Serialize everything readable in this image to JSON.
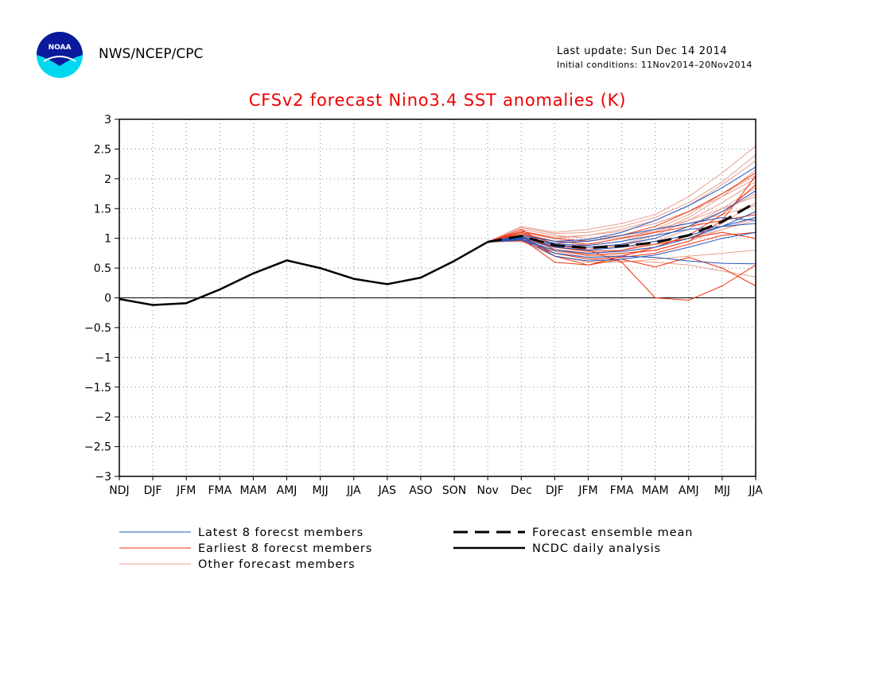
{
  "header": {
    "org": "NWS/NCEP/CPC",
    "last_update": "Last update: Sun Dec 14 2014",
    "initial_conditions": "Initial conditions: 11Nov2014–20Nov2014",
    "logo_text": "NOAA"
  },
  "colors": {
    "title": "#ee0000",
    "latest": "#2255bb",
    "earliest": "#ee3311",
    "other": "#e8a090",
    "analysis": "#000000"
  },
  "chart_data": {
    "type": "line",
    "title": "CFSv2 forecast Nino3.4 SST anomalies (K)",
    "xlabel": "",
    "ylabel": "",
    "categories": [
      "NDJ",
      "DJF",
      "JFM",
      "FMA",
      "MAM",
      "AMJ",
      "MJJ",
      "JJA",
      "JAS",
      "ASO",
      "SON",
      "Nov",
      "Dec",
      "DJF",
      "JFM",
      "FMA",
      "MAM",
      "AMJ",
      "MJJ",
      "JJA"
    ],
    "ylim": [
      -3,
      3
    ],
    "yticks": [
      "3",
      "2.5",
      "2",
      "1.5",
      "1",
      "0.5",
      "0",
      "−0.5",
      "−1",
      "−1.5",
      "−2",
      "−2.5",
      "−3"
    ],
    "grid": true,
    "analysis": {
      "name": "NCDC daily analysis",
      "values": [
        -0.02,
        -0.12,
        -0.09,
        0.14,
        0.41,
        0.63,
        0.5,
        0.32,
        0.23,
        0.34,
        0.62,
        0.94
      ]
    },
    "ensemble_mean": {
      "name": "Forecast ensemble mean",
      "start_index": 11,
      "values": [
        0.94,
        1.04,
        0.88,
        0.84,
        0.87,
        0.93,
        1.05,
        1.28,
        1.6
      ]
    },
    "members": {
      "start_index": 11,
      "latest": [
        [
          0.94,
          1.0,
          0.92,
          0.95,
          1.05,
          1.15,
          1.25,
          1.35,
          1.3
        ],
        [
          0.94,
          0.98,
          0.85,
          0.8,
          0.85,
          0.95,
          1.05,
          1.2,
          1.35
        ],
        [
          0.94,
          1.02,
          0.75,
          0.68,
          0.7,
          0.68,
          0.62,
          0.58,
          0.57
        ],
        [
          0.94,
          1.05,
          0.95,
          0.98,
          1.1,
          1.3,
          1.55,
          1.85,
          2.2
        ],
        [
          0.94,
          0.97,
          0.8,
          0.75,
          0.78,
          0.85,
          1.0,
          1.2,
          1.45
        ],
        [
          0.94,
          1.01,
          0.88,
          0.85,
          0.9,
          1.0,
          1.2,
          1.45,
          1.8
        ],
        [
          0.94,
          0.99,
          0.7,
          0.62,
          0.65,
          0.72,
          0.85,
          1.0,
          1.1
        ],
        [
          0.94,
          1.03,
          0.9,
          0.88,
          0.95,
          1.05,
          1.15,
          1.2,
          1.25
        ]
      ],
      "earliest": [
        [
          0.94,
          1.1,
          0.9,
          0.8,
          0.6,
          0.0,
          -0.04,
          0.2,
          0.55
        ],
        [
          0.94,
          1.05,
          0.7,
          0.55,
          0.65,
          0.52,
          0.68,
          0.5,
          0.2
        ],
        [
          0.94,
          1.15,
          0.8,
          0.72,
          0.75,
          0.8,
          0.95,
          1.3,
          2.05
        ],
        [
          0.94,
          1.0,
          0.6,
          0.55,
          0.7,
          0.85,
          1.05,
          1.4,
          1.9
        ],
        [
          0.94,
          1.08,
          0.95,
          0.9,
          1.0,
          1.1,
          1.2,
          1.3,
          1.4
        ],
        [
          0.94,
          1.02,
          0.85,
          0.78,
          0.8,
          0.9,
          1.0,
          1.1,
          1.0
        ],
        [
          0.94,
          1.12,
          1.0,
          0.95,
          1.05,
          1.2,
          1.45,
          1.75,
          2.1
        ],
        [
          0.94,
          0.96,
          0.75,
          0.65,
          0.68,
          0.75,
          0.9,
          1.05,
          1.1
        ]
      ],
      "other": [
        [
          0.94,
          1.2,
          1.1,
          1.15,
          1.25,
          1.4,
          1.7,
          2.1,
          2.55
        ],
        [
          0.94,
          1.0,
          0.85,
          0.8,
          0.9,
          1.05,
          1.3,
          1.6,
          1.95
        ],
        [
          0.94,
          1.05,
          0.9,
          0.88,
          0.95,
          1.1,
          1.35,
          1.7,
          2.15
        ],
        [
          0.94,
          0.98,
          0.78,
          0.7,
          0.72,
          0.8,
          0.95,
          1.15,
          1.35
        ],
        [
          0.94,
          1.1,
          1.0,
          1.05,
          1.15,
          1.3,
          1.55,
          1.9,
          2.3
        ],
        [
          0.94,
          1.02,
          0.82,
          0.75,
          0.78,
          0.85,
          1.0,
          1.25,
          1.6
        ],
        [
          0.94,
          0.95,
          0.7,
          0.6,
          0.6,
          0.65,
          0.7,
          0.75,
          0.8
        ],
        [
          0.94,
          1.15,
          1.05,
          1.0,
          1.05,
          1.15,
          1.3,
          1.5,
          1.7
        ],
        [
          0.94,
          1.0,
          0.88,
          0.9,
          1.0,
          1.15,
          1.4,
          1.75,
          2.05
        ],
        [
          0.94,
          1.08,
          0.92,
          0.85,
          0.85,
          0.9,
          1.0,
          1.15,
          1.3
        ],
        [
          0.94,
          0.97,
          0.75,
          0.65,
          0.62,
          0.6,
          0.55,
          0.45,
          0.35
        ],
        [
          0.94,
          1.12,
          1.02,
          1.05,
          1.12,
          1.25,
          1.45,
          1.7,
          2.0
        ],
        [
          0.94,
          1.03,
          0.86,
          0.82,
          0.88,
          1.0,
          1.2,
          1.5,
          1.85
        ],
        [
          0.94,
          1.06,
          0.95,
          0.95,
          1.02,
          1.12,
          1.25,
          1.4,
          1.55
        ],
        [
          0.94,
          0.99,
          0.8,
          0.74,
          0.8,
          0.95,
          1.15,
          1.45,
          1.75
        ],
        [
          0.94,
          1.18,
          1.08,
          1.1,
          1.2,
          1.35,
          1.6,
          1.95,
          2.4
        ]
      ]
    },
    "legend": {
      "position": "bottom",
      "latest": "Latest 8 forecst members",
      "earliest": "Earliest 8 forecst members",
      "other": "Other forecast members",
      "mean": "Forecast ensemble mean",
      "analysis": "NCDC daily analysis"
    }
  }
}
